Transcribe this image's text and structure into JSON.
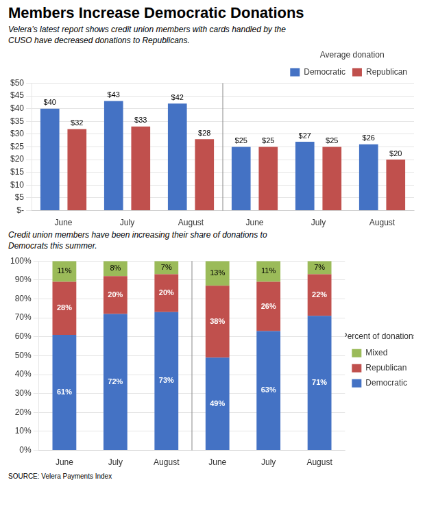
{
  "chart_data": [
    {
      "type": "bar",
      "title": "Members Increase Democratic Donations",
      "subtitle": "Velera’s latest report shows credit union members with cards handled by the\nCUSO have decreased donations to Republicans.",
      "categories": [
        "June",
        "July",
        "August",
        "June",
        "July",
        "August"
      ],
      "series": [
        {
          "name": "Democratic",
          "color": "#4472C4",
          "values": [
            40,
            43,
            42,
            25,
            27,
            26
          ],
          "value_labels": [
            "$40",
            "$43",
            "$42",
            "$25",
            "$27",
            "$26"
          ]
        },
        {
          "name": "Republican",
          "color": "#C0504D",
          "values": [
            32,
            33,
            28,
            25,
            25,
            20
          ],
          "value_labels": [
            "$32",
            "$33",
            "$28",
            "$25",
            "$25",
            "$20"
          ]
        }
      ],
      "ylim": [
        0,
        50
      ],
      "yticks": [
        {
          "value": 0,
          "label": "$-"
        },
        {
          "value": 5,
          "label": "$5"
        },
        {
          "value": 10,
          "label": "$10"
        },
        {
          "value": 15,
          "label": "$15"
        },
        {
          "value": 20,
          "label": "$20"
        },
        {
          "value": 25,
          "label": "$25"
        },
        {
          "value": 30,
          "label": "$30"
        },
        {
          "value": 35,
          "label": "$35"
        },
        {
          "value": 40,
          "label": "$40"
        },
        {
          "value": 45,
          "label": "$45"
        },
        {
          "value": 50,
          "label": "$50"
        }
      ],
      "grid": true,
      "legend": "upper right",
      "legend_title": "Average donation",
      "data_labels": true
    },
    {
      "type": "bar",
      "subtitle": "Credit union members have been increasing their share of donations to\nDemocrats this summer.",
      "categories": [
        "June",
        "July",
        "August",
        "June",
        "July",
        "August"
      ],
      "series": [
        {
          "name": "Democratic",
          "color": "#4472C4",
          "values": [
            61,
            72,
            73,
            49,
            63,
            71
          ],
          "value_labels": [
            "61%",
            "72%",
            "73%",
            "49%",
            "63%",
            "71%"
          ]
        },
        {
          "name": "Republican",
          "color": "#C0504D",
          "values": [
            28,
            20,
            20,
            38,
            26,
            22
          ],
          "value_labels": [
            "28%",
            "20%",
            "20%",
            "38%",
            "26%",
            "22%"
          ]
        },
        {
          "name": "Mixed",
          "color": "#9BBB59",
          "values": [
            11,
            8,
            7,
            13,
            11,
            7
          ],
          "value_labels": [
            "11%",
            "8%",
            "7%",
            "13%",
            "11%",
            "7%"
          ]
        }
      ],
      "stacked": true,
      "ylim": [
        0,
        100
      ],
      "yticks": [
        {
          "value": 0,
          "label": "0%"
        },
        {
          "value": 10,
          "label": "10%"
        },
        {
          "value": 20,
          "label": "20%"
        },
        {
          "value": 30,
          "label": "30%"
        },
        {
          "value": 40,
          "label": "40%"
        },
        {
          "value": 50,
          "label": "50%"
        },
        {
          "value": 60,
          "label": "60%"
        },
        {
          "value": 70,
          "label": "70%"
        },
        {
          "value": 80,
          "label": "80%"
        },
        {
          "value": 90,
          "label": "90%"
        },
        {
          "value": 100,
          "label": "100%"
        }
      ],
      "grid": true,
      "legend": "center right",
      "legend_title": "Percent of donations",
      "data_labels": true,
      "source": "SOURCE: Velera Payments Index"
    }
  ]
}
